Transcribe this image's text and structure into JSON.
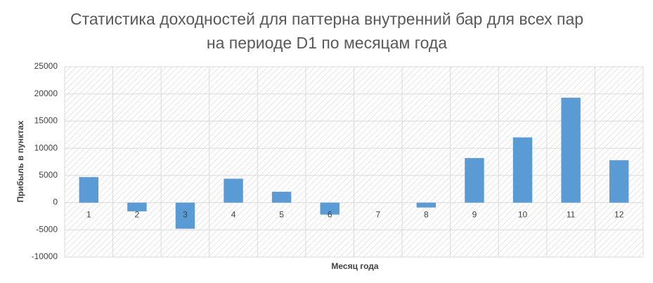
{
  "chart_data": {
    "type": "bar",
    "title": "Статистика доходностей для паттерна внутренний бар для всех пар на периоде D1 по месяцам года",
    "x_label": "Месяц года",
    "y_label": "Прибыль в пунктах",
    "categories": [
      "1",
      "2",
      "3",
      "4",
      "5",
      "6",
      "7",
      "8",
      "9",
      "10",
      "11",
      "12"
    ],
    "values": [
      4700,
      -1600,
      -4800,
      4400,
      2000,
      -2200,
      0,
      -900,
      8200,
      12000,
      19300,
      7800
    ],
    "color": "#5b9bd5",
    "ylim": [
      -10000,
      25000
    ],
    "yticks": [
      -10000,
      -5000,
      0,
      5000,
      10000,
      15000,
      20000,
      25000
    ],
    "grid": true
  }
}
